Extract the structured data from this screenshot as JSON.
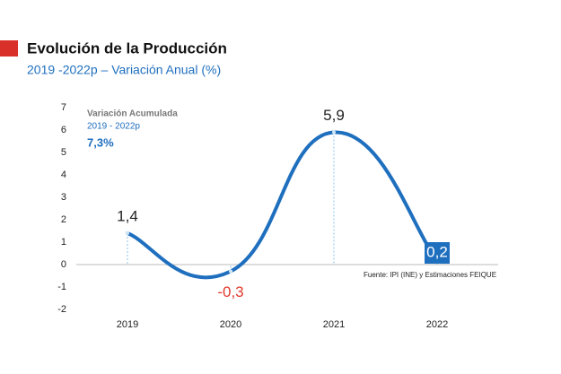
{
  "chart_data": {
    "type": "line",
    "title": "Evolución de la Producción",
    "subtitle": "2019 -2022p  – Variación Anual (%)",
    "annotation": {
      "title": "Variación Acumulada",
      "period": "2019 - 2022p",
      "value": "7,3%"
    },
    "source": "Fuente: IPI (INE) y Estimaciones FEIQUE",
    "categories": [
      "2019",
      "2020",
      "2021",
      "2022"
    ],
    "values": [
      1.4,
      -0.3,
      5.9,
      0.2
    ],
    "value_labels": [
      "1,4",
      "-0,3",
      "5,9",
      "0,2"
    ],
    "value_label_colors": [
      "#222222",
      "#e03a2f",
      "#222222",
      "#ffffff"
    ],
    "color": "#1f6fbf",
    "ylim": [
      -2,
      7
    ],
    "yticks": [
      -2,
      -1,
      0,
      1,
      2,
      3,
      4,
      5,
      6,
      7
    ],
    "grid": false
  }
}
